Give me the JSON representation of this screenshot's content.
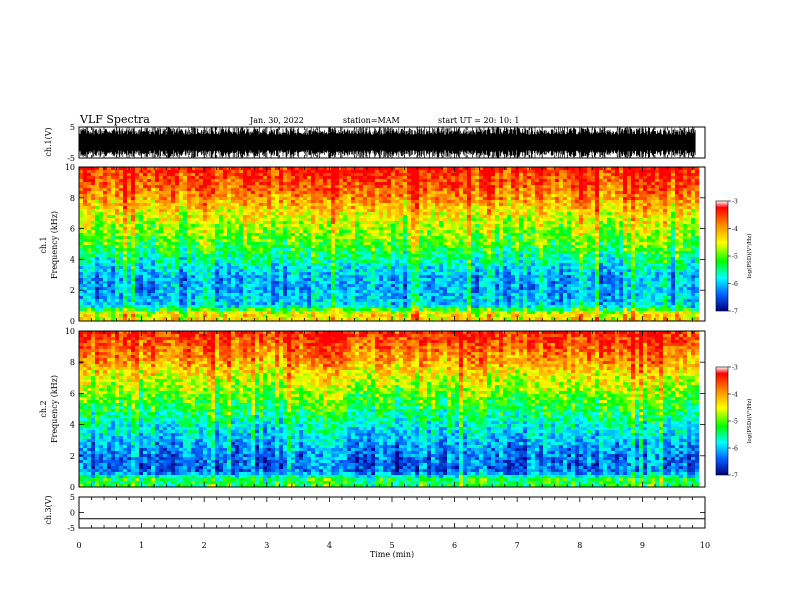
{
  "header": {
    "title": "VLF Spectra",
    "date": "Jan. 30, 2022",
    "station": "station=MAM",
    "start_ut": "start UT =  20: 10: 1"
  },
  "colorbar": {
    "label": "log(PSD)(V²/Hz)",
    "ticks": [
      "-3",
      "-4",
      "-5",
      "-6",
      "-7"
    ],
    "colors": [
      "#ff0000",
      "#ff8c00",
      "#ffff00",
      "#00ff00",
      "#00ffff",
      "#0060ff",
      "#0000c0"
    ]
  },
  "chart_data": [
    {
      "type": "line",
      "name": "ch1-waveform",
      "ylabel": "ch.1(V)",
      "ylim": [
        -5,
        5
      ],
      "yticks": [
        "5",
        "-5"
      ],
      "x": [
        0,
        10
      ],
      "note_values": "dense noise waveform spanning roughly -5 to 5 V"
    },
    {
      "type": "heatmap",
      "name": "ch1-spectrogram",
      "ylabel_lines": [
        "ch.1",
        "Frequency (kHz)"
      ],
      "ylim": [
        0,
        10
      ],
      "yticks": [
        "0",
        "2",
        "4",
        "6",
        "8",
        "10"
      ],
      "xlim": [
        0,
        10
      ],
      "profile_log_psd": [
        {
          "freq_khz": 0.5,
          "log_psd": -4.3
        },
        {
          "freq_khz": 1.0,
          "log_psd": -5.9
        },
        {
          "freq_khz": 2.0,
          "log_psd": -6.1
        },
        {
          "freq_khz": 3.0,
          "log_psd": -6.0
        },
        {
          "freq_khz": 4.0,
          "log_psd": -5.5
        },
        {
          "freq_khz": 5.0,
          "log_psd": -5.0
        },
        {
          "freq_khz": 6.0,
          "log_psd": -4.7
        },
        {
          "freq_khz": 7.0,
          "log_psd": -4.3
        },
        {
          "freq_khz": 8.0,
          "log_psd": -3.8
        },
        {
          "freq_khz": 9.0,
          "log_psd": -3.4
        },
        {
          "freq_khz": 10.0,
          "log_psd": -3.2
        }
      ]
    },
    {
      "type": "heatmap",
      "name": "ch2-spectrogram",
      "ylabel_lines": [
        "ch.2",
        "Frequency (kHz)"
      ],
      "ylim": [
        0,
        10
      ],
      "yticks": [
        "0",
        "2",
        "4",
        "6",
        "8",
        "10"
      ],
      "xlim": [
        0,
        10
      ],
      "profile_log_psd": [
        {
          "freq_khz": 0.5,
          "log_psd": -5.2
        },
        {
          "freq_khz": 1.0,
          "log_psd": -6.4
        },
        {
          "freq_khz": 2.0,
          "log_psd": -6.3
        },
        {
          "freq_khz": 3.0,
          "log_psd": -6.0
        },
        {
          "freq_khz": 4.0,
          "log_psd": -5.6
        },
        {
          "freq_khz": 5.0,
          "log_psd": -5.2
        },
        {
          "freq_khz": 6.0,
          "log_psd": -4.8
        },
        {
          "freq_khz": 7.0,
          "log_psd": -4.4
        },
        {
          "freq_khz": 8.0,
          "log_psd": -3.9
        },
        {
          "freq_khz": 9.0,
          "log_psd": -3.5
        },
        {
          "freq_khz": 10.0,
          "log_psd": -3.2
        }
      ]
    },
    {
      "type": "line",
      "name": "ch3-waveform",
      "ylabel": "ch.3(V)",
      "ylim": [
        -5,
        5
      ],
      "yticks": [
        "5",
        "0",
        "-5"
      ],
      "x": [
        0,
        10
      ],
      "y": [
        -2,
        -2
      ]
    }
  ],
  "xaxis": {
    "label": "Time (min)",
    "ticks": [
      "0",
      "1",
      "2",
      "3",
      "4",
      "5",
      "6",
      "7",
      "8",
      "9",
      "10"
    ],
    "range": [
      0,
      10
    ],
    "data_end": 9.85
  }
}
